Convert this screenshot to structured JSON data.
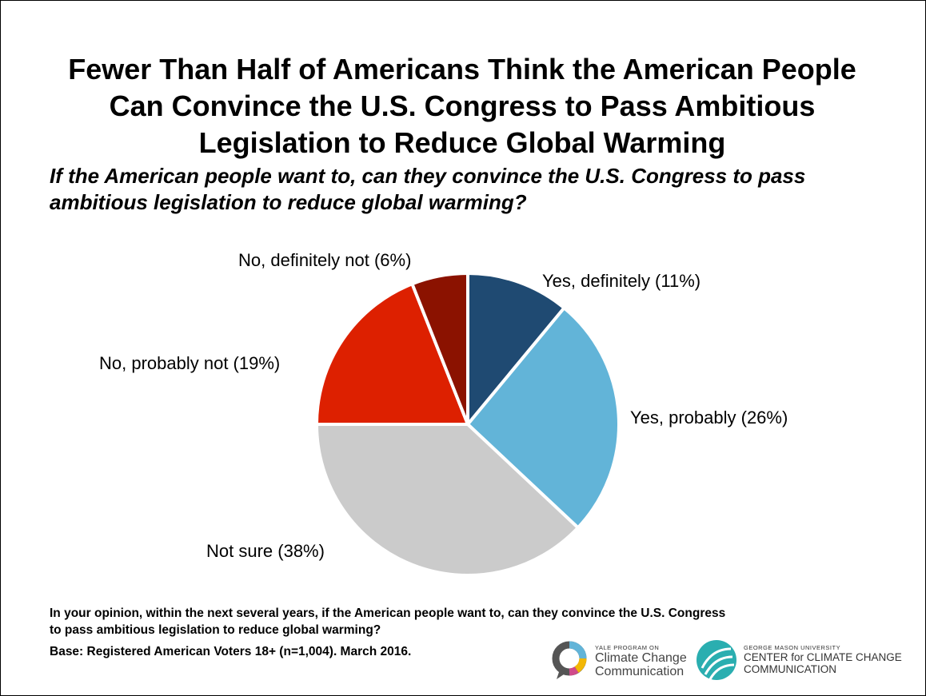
{
  "title_lines": [
    "Fewer Than Half of Americans Think the American People",
    "Can Convince the U.S. Congress to Pass Ambitious",
    "Legislation to Reduce Global Warming"
  ],
  "question_lines": [
    "If the American people want to, can they convince the U.S. Congress to pass",
    "ambitious legislation to reduce global warming?"
  ],
  "chart_data": {
    "type": "pie",
    "title": "",
    "start": "12 o'clock, clockwise",
    "slices": [
      {
        "label": "Yes, definitely (11%)",
        "value": 11,
        "color": "#1f4a72"
      },
      {
        "label": "Yes, probably (26%)",
        "value": 26,
        "color": "#62b4d8"
      },
      {
        "label": "Not sure (38%)",
        "value": 38,
        "color": "#cbcbcb"
      },
      {
        "label": "No, probably not (19%)",
        "value": 19,
        "color": "#dd2000"
      },
      {
        "label": "No, definitely not (6%)",
        "value": 6,
        "color": "#8b1200"
      }
    ]
  },
  "footnote_lines": [
    "In your opinion, within the next several years, if the American people want to, can they convince the U.S. Congress",
    "to pass ambitious legislation to reduce global warming?"
  ],
  "base_text": "Base: Registered American Voters 18+ (n=1,004). March 2016.",
  "logos": {
    "yale": {
      "small": "YALE PROGRAM ON",
      "line1": "Climate Change",
      "line2": "Communication"
    },
    "gmu": {
      "small": "GEORGE MASON UNIVERSITY",
      "line1": "CENTER for CLIMATE CHANGE",
      "line2": "COMMUNICATION"
    }
  }
}
